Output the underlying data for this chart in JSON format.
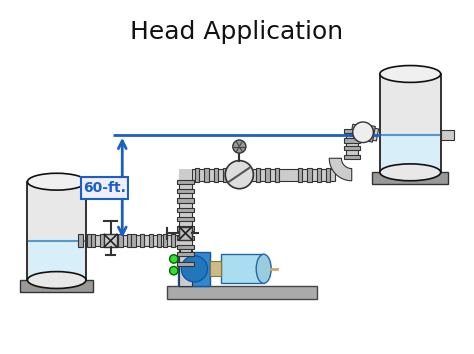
{
  "title": "Head Application",
  "title_fontsize": 18,
  "bg_color": "#ffffff",
  "blue_line_color": "#1a5fc8",
  "water_color": "#d8eef8",
  "water_line_color": "#5599cc",
  "tank_color": "#e8e8e8",
  "tank_edge_color": "#111111",
  "pipe_color": "#cccccc",
  "pipe_edge_color": "#333333",
  "pump_body_color": "#3388cc",
  "pump_motor_color": "#aaddee",
  "arrow_color": "#1a5fc8",
  "label_box_color": "#eeeeff",
  "label_text_color": "#1a5fc8",
  "label_text": "60-ft.",
  "green_dot_color": "#33dd33",
  "base_color": "#999999",
  "flange_color": "#aaaaaa",
  "coupling_color": "#ccbb88"
}
